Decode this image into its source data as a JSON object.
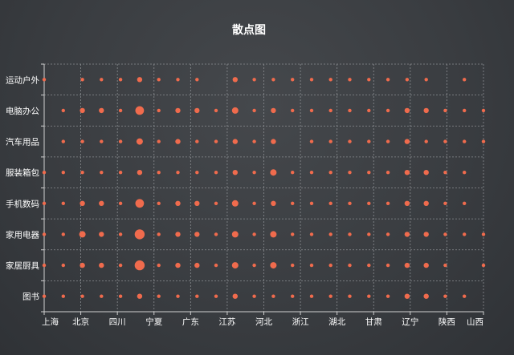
{
  "chart_data": {
    "type": "scatter",
    "title": "散点图",
    "x_categories": [
      "上海",
      "北京",
      "四川",
      "宁夏",
      "广东",
      "江苏",
      "河北",
      "浙江",
      "湖北",
      "甘肃",
      "辽宁",
      "陕西",
      "山西"
    ],
    "y_categories": [
      "图书",
      "家居厨具",
      "家用电器",
      "手机数码",
      "服装箱包",
      "汽车用品",
      "电脑办公",
      "运动户外"
    ],
    "columns": [
      "上海",
      "北京",
      "北京",
      "四川",
      "四川",
      "宁夏",
      "宁夏",
      "广东",
      "广东",
      "江苏",
      "江苏",
      "河北",
      "河北",
      "浙江",
      "浙江",
      "湖北",
      "湖北",
      "甘肃",
      "甘肃",
      "辽宁",
      "辽宁",
      "陕西",
      "陕西",
      "山西"
    ],
    "series_color": "#f06b4d",
    "grid": true,
    "legend": "none",
    "points": {
      "运动户外": [
        2,
        0,
        2,
        2,
        2,
        3,
        2,
        2,
        2,
        0,
        3,
        2,
        2,
        2,
        2,
        2,
        2,
        2,
        2,
        2,
        2,
        0,
        2,
        0
      ],
      "电脑办公": [
        0,
        2,
        3,
        3,
        2,
        6,
        2,
        3,
        3,
        2,
        4,
        2,
        3,
        2,
        2,
        2,
        2,
        2,
        2,
        3,
        3,
        2,
        2,
        2
      ],
      "汽车用品": [
        0,
        2,
        2,
        2,
        2,
        4,
        2,
        3,
        2,
        2,
        3,
        2,
        3,
        0,
        2,
        2,
        2,
        2,
        2,
        3,
        2,
        2,
        2,
        2
      ],
      "服装箱包": [
        2,
        2,
        2,
        2,
        2,
        3,
        2,
        2,
        2,
        2,
        3,
        2,
        4,
        2,
        2,
        2,
        2,
        2,
        2,
        3,
        3,
        2,
        2,
        0
      ],
      "手机数码": [
        2,
        2,
        3,
        3,
        2,
        6,
        2,
        3,
        3,
        2,
        4,
        2,
        3,
        2,
        2,
        2,
        2,
        2,
        2,
        3,
        3,
        2,
        2,
        0
      ],
      "家用电器": [
        2,
        2,
        4,
        3,
        2,
        7,
        2,
        3,
        3,
        2,
        4,
        2,
        4,
        2,
        2,
        2,
        2,
        2,
        2,
        3,
        3,
        2,
        2,
        2
      ],
      "家居厨具": [
        2,
        2,
        3,
        3,
        2,
        7,
        2,
        3,
        3,
        2,
        4,
        2,
        4,
        2,
        2,
        2,
        2,
        2,
        2,
        3,
        3,
        2,
        0,
        2
      ],
      "图书": [
        2,
        2,
        2,
        2,
        2,
        3,
        2,
        2,
        2,
        2,
        3,
        2,
        2,
        2,
        2,
        2,
        2,
        2,
        2,
        3,
        3,
        2,
        2,
        0
      ]
    }
  }
}
